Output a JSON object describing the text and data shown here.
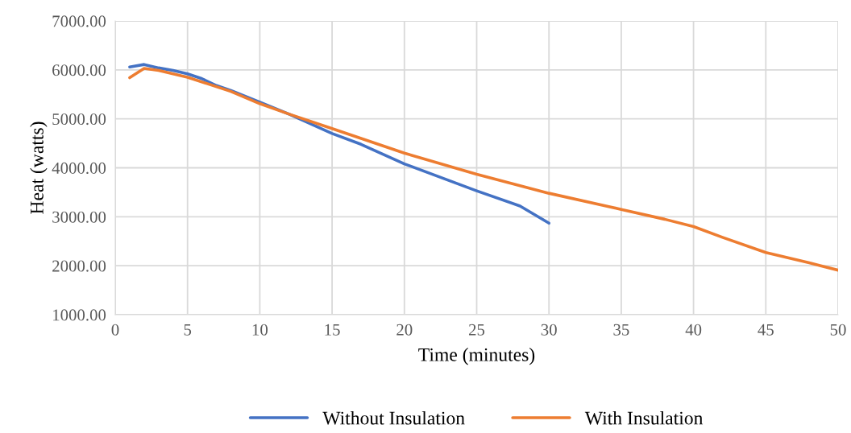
{
  "chart_data": {
    "type": "line",
    "xlabel": "Time (minutes)",
    "ylabel": "Heat (watts)",
    "xlim": [
      0,
      50
    ],
    "xticks": [
      0,
      5,
      10,
      15,
      20,
      25,
      30,
      35,
      40,
      45,
      50
    ],
    "ylim": [
      1000,
      7000
    ],
    "yticks": [
      {
        "value": 1000,
        "label": "1000.00"
      },
      {
        "value": 2000,
        "label": "2000.00"
      },
      {
        "value": 3000,
        "label": "3000.00"
      },
      {
        "value": 4000,
        "label": "4000.00"
      },
      {
        "value": 5000,
        "label": "5000.00"
      },
      {
        "value": 6000,
        "label": "6000.00"
      },
      {
        "value": 7000,
        "label": "7000.00"
      }
    ],
    "grid": true,
    "legend": "bottom",
    "marker": "none",
    "line_style": "solid",
    "series": [
      {
        "name": "Without Insulation",
        "color": "#4472c4",
        "x": [
          1,
          2,
          3,
          4,
          5,
          6,
          7,
          8,
          10,
          12,
          15,
          17,
          20,
          25,
          28,
          30
        ],
        "values": [
          6060,
          6110,
          6040,
          5990,
          5920,
          5820,
          5680,
          5580,
          5340,
          5100,
          4700,
          4480,
          4080,
          3530,
          3220,
          2870
        ]
      },
      {
        "name": "With Insulation",
        "color": "#ed7d31",
        "x": [
          1,
          2,
          3,
          5,
          8,
          10,
          12,
          15,
          20,
          25,
          30,
          35,
          38,
          40,
          42,
          45,
          48,
          50
        ],
        "values": [
          5840,
          6030,
          5990,
          5850,
          5560,
          5310,
          5100,
          4800,
          4300,
          3870,
          3480,
          3150,
          2950,
          2800,
          2580,
          2270,
          2060,
          1910
        ]
      }
    ]
  }
}
